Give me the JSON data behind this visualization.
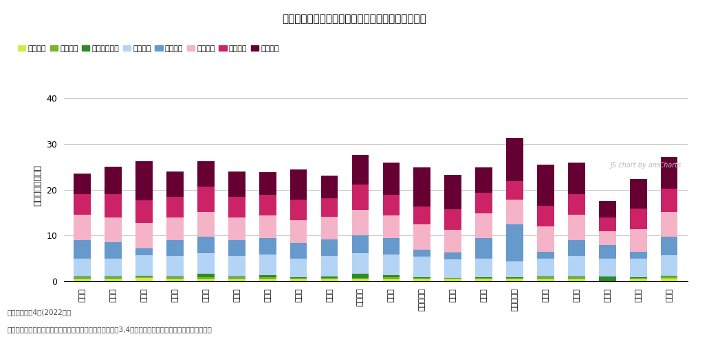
{
  "title": "第１号被保険者１人あたり給付月額（要介護度別）",
  "ylabel": "給付月額（千円）",
  "categories": [
    "宇宙市",
    "大分県",
    "九重町",
    "大分市",
    "別府市",
    "中津市",
    "日田市",
    "佐伯市",
    "臼杵市",
    "津久見市",
    "竹田市",
    "豊後高田市",
    "杵築市",
    "宇佐市",
    "豊後大野市",
    "由布市",
    "国東市",
    "姫島村",
    "日出町",
    "玖珠町"
  ],
  "series": {
    "要支援１": [
      0.5,
      0.5,
      0.8,
      0.4,
      0.5,
      0.5,
      0.5,
      0.5,
      0.4,
      0.5,
      0.5,
      0.4,
      0.4,
      0.4,
      0.5,
      0.5,
      0.5,
      0.0,
      0.5,
      0.6
    ],
    "要支援２": [
      0.4,
      0.4,
      0.3,
      0.5,
      0.4,
      0.4,
      0.4,
      0.3,
      0.4,
      0.3,
      0.4,
      0.4,
      0.3,
      0.4,
      0.3,
      0.4,
      0.4,
      0.0,
      0.3,
      0.5
    ],
    "経過的要介護": [
      0.1,
      0.1,
      0.1,
      0.1,
      0.8,
      0.1,
      0.5,
      0.1,
      0.3,
      0.8,
      0.5,
      0.1,
      0.1,
      0.1,
      0.1,
      0.1,
      0.1,
      1.0,
      0.1,
      0.1
    ],
    "要介護１": [
      4.0,
      4.0,
      4.5,
      4.5,
      4.5,
      4.5,
      4.5,
      4.0,
      4.5,
      4.5,
      4.5,
      4.5,
      4.0,
      4.0,
      3.5,
      4.0,
      4.5,
      4.0,
      4.0,
      4.5
    ],
    "要介護２": [
      4.0,
      3.5,
      1.5,
      3.5,
      3.5,
      3.5,
      3.5,
      3.5,
      3.5,
      4.0,
      3.5,
      1.5,
      1.5,
      4.5,
      8.0,
      1.5,
      3.5,
      3.0,
      1.5,
      4.0
    ],
    "要介護３": [
      5.5,
      5.5,
      5.5,
      5.0,
      5.5,
      5.0,
      5.0,
      5.0,
      5.0,
      5.5,
      5.0,
      5.5,
      5.0,
      5.5,
      5.5,
      5.5,
      5.5,
      3.0,
      5.0,
      5.5
    ],
    "要介護４": [
      4.5,
      5.0,
      5.0,
      4.5,
      5.5,
      4.5,
      4.5,
      4.5,
      4.0,
      5.5,
      4.5,
      4.0,
      4.5,
      4.5,
      4.0,
      4.5,
      4.5,
      3.0,
      4.5,
      5.0
    ],
    "要介護５": [
      4.5,
      6.0,
      8.5,
      5.5,
      5.5,
      5.5,
      5.0,
      6.5,
      5.0,
      6.5,
      7.0,
      8.5,
      7.5,
      5.5,
      9.5,
      9.0,
      7.0,
      3.5,
      6.5,
      7.0
    ]
  },
  "colors": {
    "要支援１": "#d4e84a",
    "要支援２": "#7ab32e",
    "経過的要介護": "#2e8b26",
    "要介護１": "#b3d4f5",
    "要介護２": "#6699cc",
    "要介護３": "#f5b3c8",
    "要介護４": "#cc2266",
    "要介護５": "#660033"
  },
  "ylim": [
    0,
    42
  ],
  "yticks": [
    0,
    10,
    20,
    30,
    40
  ],
  "background_color": "#ffffff",
  "grid_color": "#cccccc",
  "footnote1": "（時点）令和4年(2022年）",
  "footnote2": "（出典）厚生労働省「介護保険事業状況報告」年報（令和3,4年度のみ「介護保険事業状況報告」月報）"
}
